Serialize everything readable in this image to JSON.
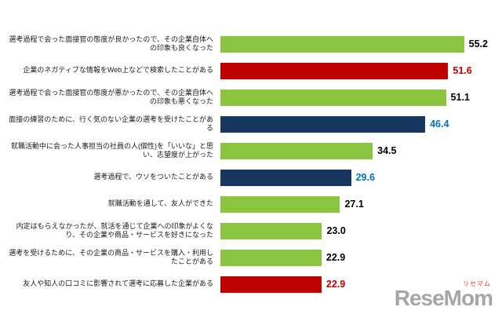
{
  "chart_data": {
    "type": "bar",
    "orientation": "horizontal",
    "title": "",
    "xlabel": "",
    "ylabel": "",
    "xlim": [
      0,
      60
    ],
    "grid": false,
    "categories": [
      "選考過程で会った面接官の態度が良かったので、その企業自体への印象も良くなった",
      "企業のネガティブな情報をWeb上などで検索したことがある",
      "選考過程で会った面接官の態度が悪かったので、その企業自体への印象も悪くなった",
      "面接の練習のために、行く気のない企業の選考を受けたことがある",
      "就職活動中に会った人事担当の社員の人(個性)を「いいな」と思い、志望度が上がった",
      "選考過程で、ウソをついたことがある",
      "就職活動を通して、友人ができた",
      "内定はもらえなかったが、就活を通じて企業への印象がよくなり、その企業や商品・サービスを好きになった",
      "選考を受けるために、その企業の商品・サービスを購入・利用したことがある",
      "友人や知人の口コミに影響されて選考に応募した企業がある"
    ],
    "values": [
      55.2,
      51.6,
      51.1,
      46.4,
      34.5,
      29.6,
      27.1,
      23.0,
      22.9,
      22.9
    ],
    "bar_colors": [
      "green",
      "red",
      "green",
      "navy",
      "green",
      "navy",
      "green",
      "green",
      "green",
      "red"
    ],
    "value_colors": [
      "black",
      "red",
      "black",
      "blue",
      "black",
      "blue",
      "black",
      "black",
      "black",
      "red"
    ]
  },
  "colors": {
    "green": "#8bc53f",
    "red": "#c00000",
    "navy": "#17375e",
    "black": "#000000",
    "blue": "#0070c0"
  },
  "logo": {
    "text": "ReseMom",
    "sub": "リセマム"
  }
}
